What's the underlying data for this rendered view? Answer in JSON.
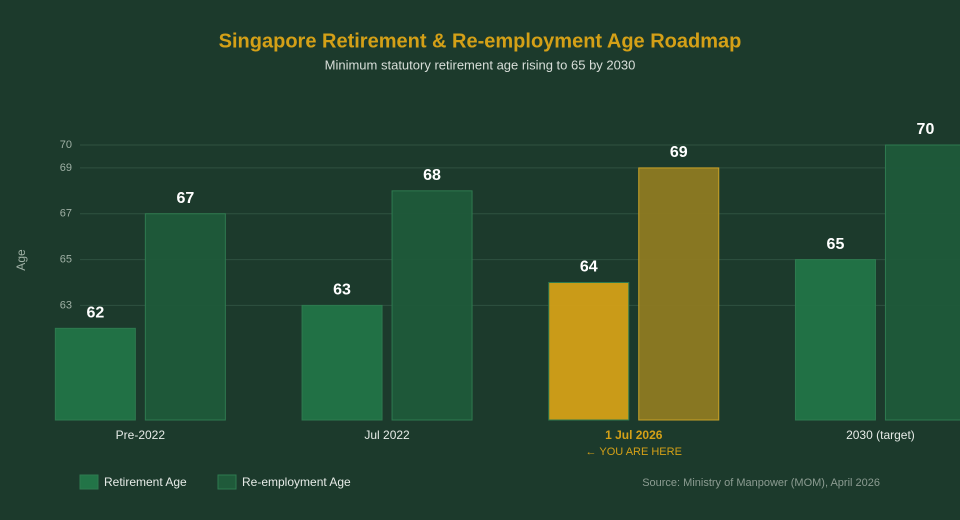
{
  "chart_data": {
    "type": "bar",
    "title": "Singapore Retirement & Re-employment Age Roadmap",
    "subtitle": "Minimum statutory retirement age rising to 65 by 2030",
    "y_label": "Age",
    "categories": [
      "Pre-2022",
      "Jul 2022",
      "1 Jul 2026",
      "2030 (target)"
    ],
    "series": [
      {
        "name": "Retirement Age",
        "color": "#227447",
        "highlight_color": "#d4a017",
        "values": [
          62,
          63,
          64,
          65
        ]
      },
      {
        "name": "Re-employment Age",
        "color": "#1f5a3a",
        "highlight_color": "#8e7a22",
        "values": [
          67,
          68,
          69,
          70
        ]
      }
    ],
    "highlight_index": 2,
    "highlight_note": "← YOU ARE HERE",
    "ylim": [
      58,
      70
    ],
    "yticks": [
      63,
      65,
      67,
      69,
      70
    ],
    "grid": true,
    "source": "Source: Ministry of Manpower (MOM), April 2026"
  }
}
